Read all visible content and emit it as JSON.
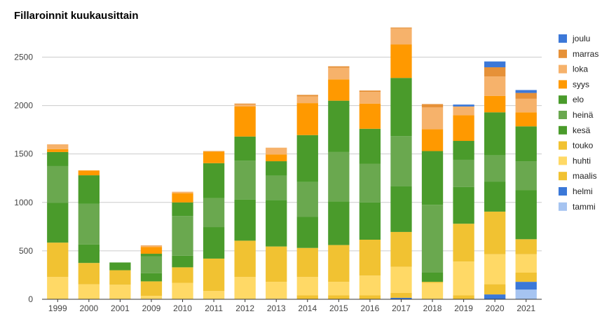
{
  "chart_data": {
    "type": "bar",
    "stacked": true,
    "title": "Fillaroinnit kuukausittain",
    "categories": [
      "1999",
      "2000",
      "2001",
      "2009",
      "2010",
      "2011",
      "2012",
      "2013",
      "2014",
      "2015",
      "2016",
      "2017",
      "2018",
      "2019",
      "2020",
      "2021"
    ],
    "ylim": [
      0,
      2800
    ],
    "yticks": [
      0,
      500,
      1000,
      1500,
      2000,
      2500
    ],
    "grid": true,
    "legend_position": "right",
    "series": [
      {
        "name": "tammi",
        "color": "#a6c4f1",
        "values": [
          0,
          0,
          0,
          0,
          0,
          0,
          0,
          0,
          0,
          0,
          0,
          0,
          0,
          0,
          0,
          100
        ]
      },
      {
        "name": "helmi",
        "color": "#3b78d8",
        "values": [
          0,
          0,
          0,
          0,
          0,
          0,
          0,
          0,
          0,
          0,
          0,
          15,
          0,
          0,
          50,
          80
        ]
      },
      {
        "name": "maalis",
        "color": "#f1c232",
        "values": [
          0,
          0,
          0,
          5,
          0,
          0,
          0,
          5,
          40,
          40,
          40,
          50,
          0,
          40,
          105,
          95
        ]
      },
      {
        "name": "huhti",
        "color": "#ffd966",
        "values": [
          230,
          155,
          150,
          30,
          170,
          85,
          230,
          175,
          190,
          140,
          205,
          270,
          170,
          350,
          310,
          190
        ]
      },
      {
        "name": "touko",
        "color": "#f1c232",
        "values": [
          355,
          220,
          150,
          150,
          160,
          335,
          375,
          365,
          300,
          380,
          370,
          360,
          10,
          390,
          440,
          155
        ]
      },
      {
        "name": "kesä",
        "color": "#4a9b2b",
        "values": [
          410,
          190,
          80,
          85,
          120,
          325,
          425,
          480,
          320,
          450,
          385,
          470,
          95,
          380,
          310,
          505
        ]
      },
      {
        "name": "heinä",
        "color": "#6aa84f",
        "values": [
          380,
          420,
          0,
          175,
          410,
          300,
          400,
          250,
          360,
          510,
          400,
          520,
          700,
          280,
          270,
          300
        ]
      },
      {
        "name": "elo",
        "color": "#4a9b2b",
        "values": [
          145,
          295,
          0,
          25,
          140,
          360,
          250,
          150,
          485,
          530,
          360,
          600,
          555,
          195,
          445,
          360
        ]
      },
      {
        "name": "syys",
        "color": "#ff9900",
        "values": [
          30,
          50,
          0,
          70,
          95,
          120,
          310,
          70,
          330,
          220,
          260,
          345,
          225,
          265,
          170,
          145
        ]
      },
      {
        "name": "loka",
        "color": "#f6b26b",
        "values": [
          50,
          0,
          0,
          10,
          15,
          0,
          20,
          70,
          70,
          120,
          120,
          165,
          225,
          90,
          200,
          140
        ]
      },
      {
        "name": "marras",
        "color": "#e69138",
        "values": [
          0,
          0,
          0,
          5,
          0,
          5,
          10,
          0,
          15,
          15,
          15,
          10,
          35,
          0,
          95,
          60
        ]
      },
      {
        "name": "joulu",
        "color": "#3c78d8",
        "values": [
          0,
          0,
          0,
          0,
          0,
          0,
          0,
          0,
          0,
          0,
          0,
          0,
          0,
          20,
          60,
          30
        ]
      }
    ]
  }
}
